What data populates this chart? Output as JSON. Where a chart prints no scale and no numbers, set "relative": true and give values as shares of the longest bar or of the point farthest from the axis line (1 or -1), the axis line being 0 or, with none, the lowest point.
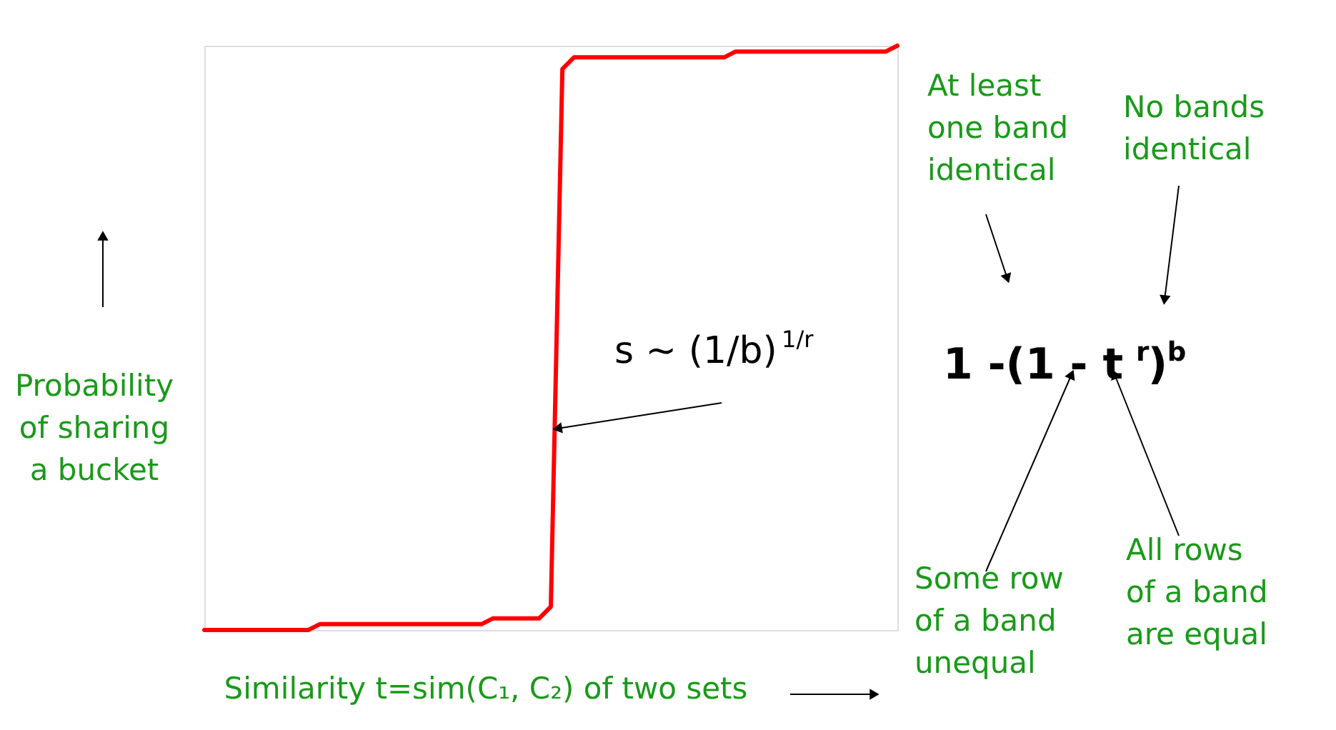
{
  "chart_data": {
    "type": "line",
    "relative": true,
    "color": "#ff0000",
    "xlabel": "Similarity t=sim(C₁, C₂) of two sets",
    "ylabel": "Probability\nof sharing\na bucket",
    "categories": [
      null,
      null,
      null,
      null,
      null,
      null,
      null,
      null,
      null,
      null,
      null,
      null,
      null,
      null,
      null,
      null,
      null,
      null,
      null,
      null,
      null,
      null,
      null,
      null,
      null,
      null,
      null,
      null,
      null,
      null,
      null,
      null,
      null,
      null,
      null,
      null,
      null,
      null,
      null,
      null,
      null,
      null,
      null,
      null,
      null,
      null,
      null,
      null,
      null,
      null,
      null,
      null,
      null,
      null,
      null,
      null,
      null,
      null,
      null,
      null,
      null
    ],
    "values": [
      0,
      0,
      0,
      0,
      0,
      0,
      0,
      0,
      0,
      0,
      0.01,
      0.01,
      0.01,
      0.01,
      0.01,
      0.01,
      0.01,
      0.01,
      0.01,
      0.01,
      0.01,
      0.01,
      0.01,
      0.01,
      0.01,
      0.02,
      0.02,
      0.02,
      0.02,
      0.02,
      0.04,
      0.96,
      0.98,
      0.98,
      0.98,
      0.98,
      0.98,
      0.98,
      0.98,
      0.98,
      0.98,
      0.98,
      0.98,
      0.98,
      0.98,
      0.98,
      0.99,
      0.99,
      0.99,
      0.99,
      0.99,
      0.99,
      0.99,
      0.99,
      0.99,
      0.99,
      0.99,
      0.99,
      0.99,
      0.99,
      1
    ],
    "annotations": [
      "At least\none band\nidentical",
      "No bands\nidentical",
      "s ~ (1/b)$^{1/r}$",
      "1 -(1 - t $^{r}$)$^{b}$",
      "Some row\nof a band\nunequal",
      "All rows\nof a band\nare equal"
    ]
  }
}
